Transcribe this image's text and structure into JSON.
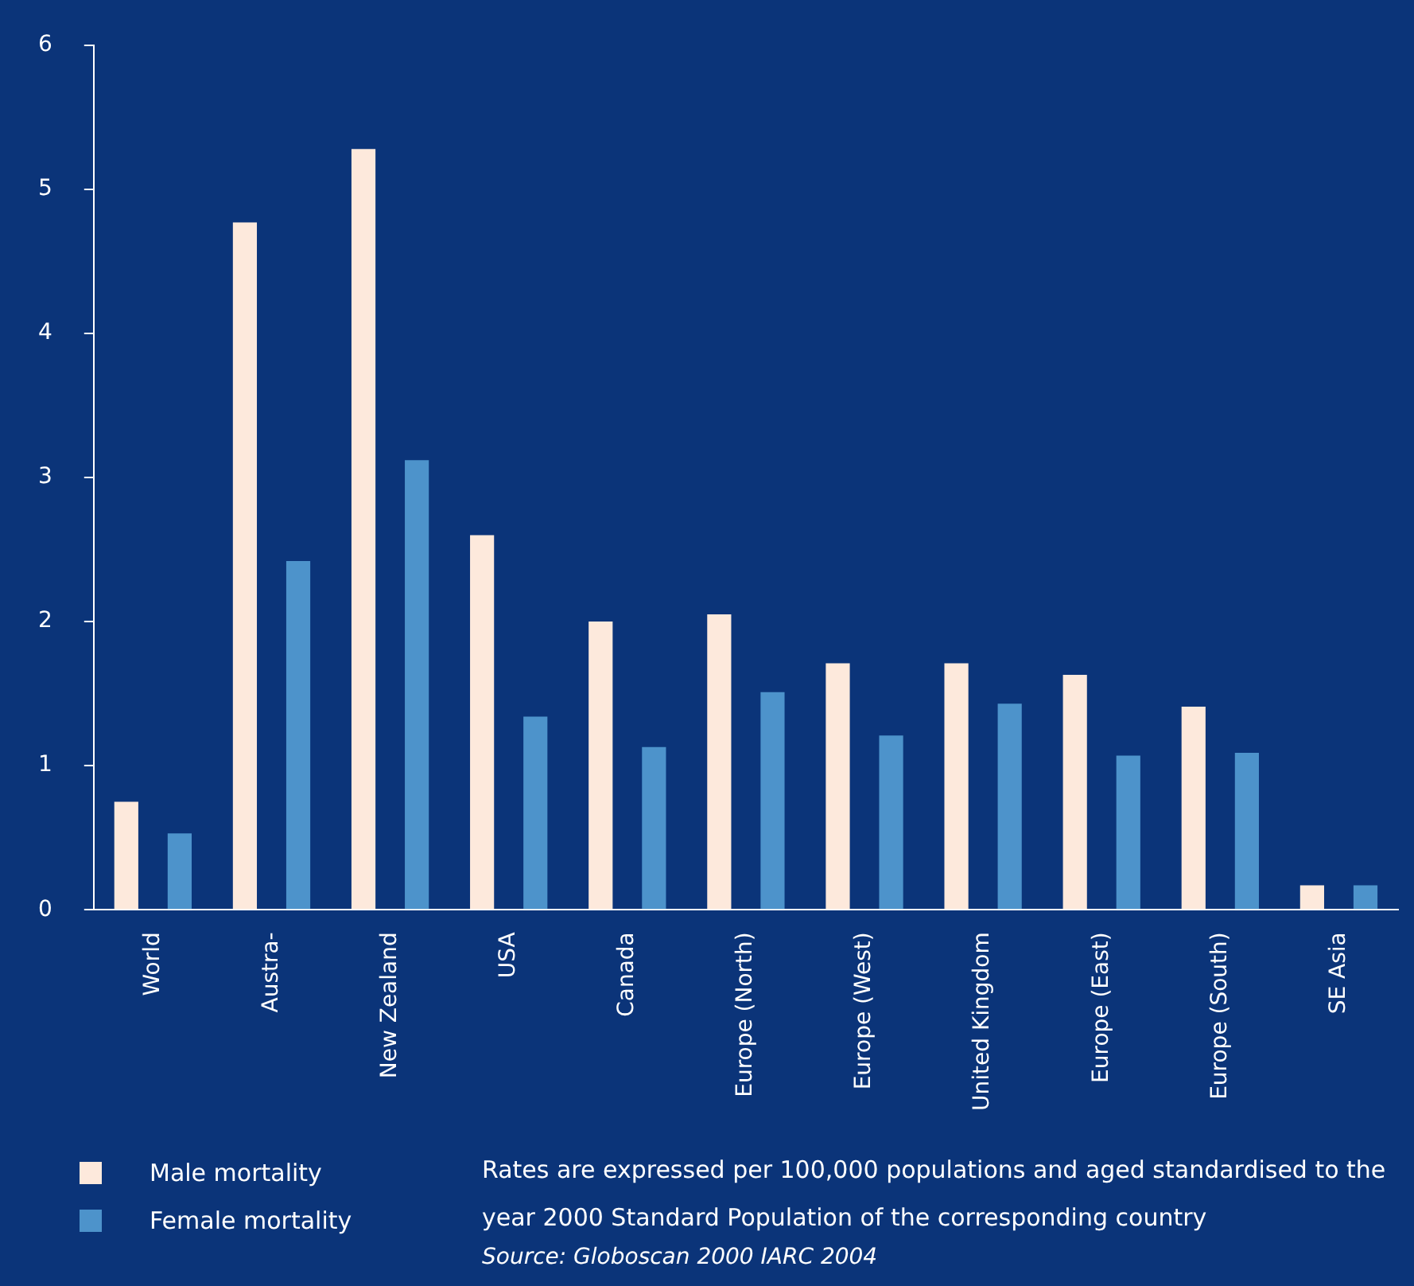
{
  "chart_data": {
    "type": "bar",
    "categories": [
      "World",
      "Austra-",
      "New Zealand",
      "USA",
      "Canada",
      "Europe (North)",
      "Europe (West)",
      "United Kingdom",
      "Europe (East)",
      "Europe (South)",
      "SE Asia"
    ],
    "series": [
      {
        "name": "Male mortality",
        "color": "#fde9dc",
        "values": [
          0.75,
          4.77,
          5.28,
          2.6,
          2.0,
          2.05,
          1.71,
          1.71,
          1.63,
          1.41,
          0.17
        ]
      },
      {
        "name": "Female mortality",
        "color": "#4d93cb",
        "values": [
          0.53,
          2.42,
          3.12,
          1.34,
          1.13,
          1.51,
          1.21,
          1.43,
          1.07,
          1.09,
          0.17
        ]
      }
    ],
    "ylim": [
      0,
      6
    ],
    "yticks": [
      0,
      1,
      2,
      3,
      4,
      5,
      6
    ],
    "grid": false,
    "legend": "bottom left",
    "annotations": [
      "Rates are expressed per 100,000 populations and aged standardised to the year 2000 Standard Population of the corresponding country",
      "Source: Globoscan 2000 IARC 2004"
    ]
  }
}
